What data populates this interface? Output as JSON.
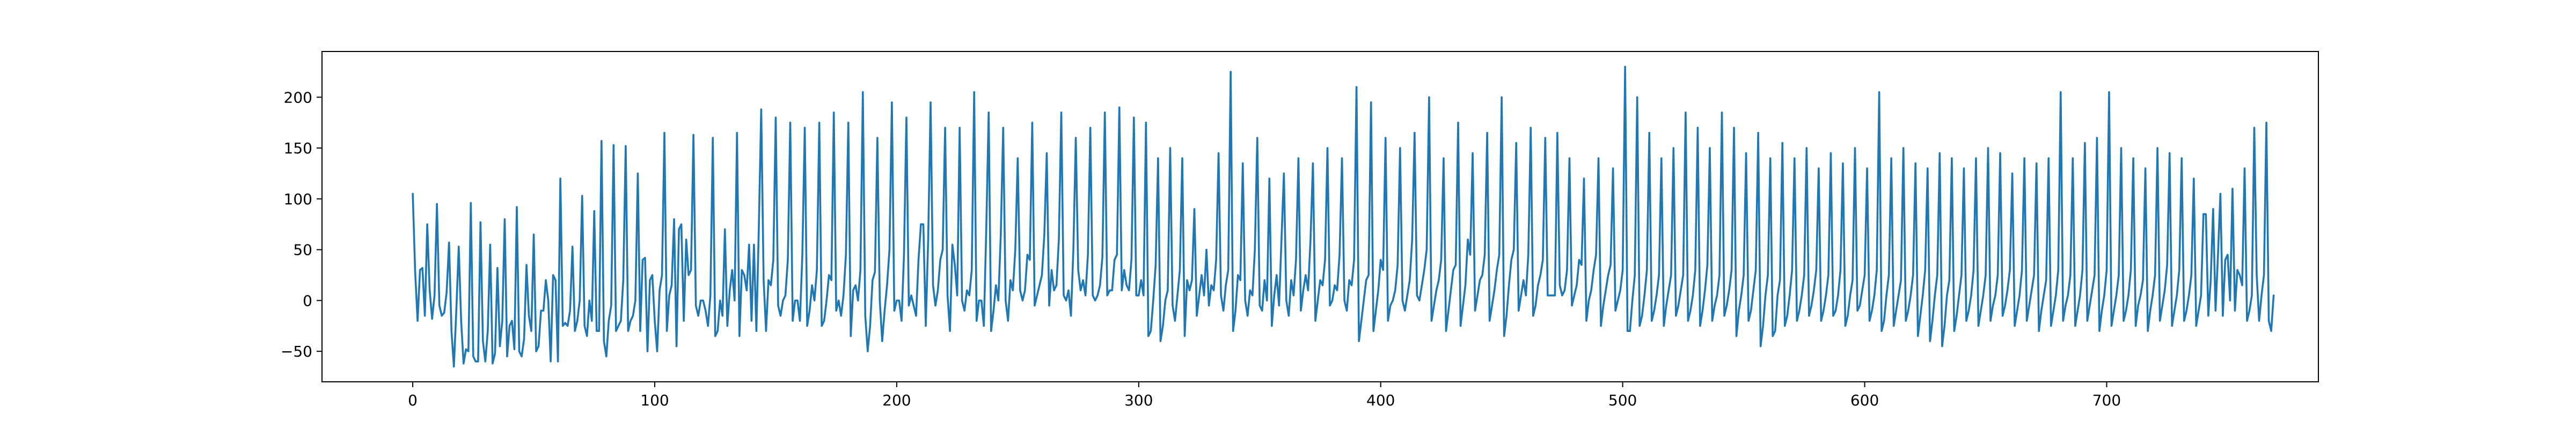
{
  "chart_data": {
    "type": "line",
    "title": "",
    "xlabel": "",
    "ylabel": "",
    "xlim": [
      -37.5,
      787.5
    ],
    "ylim": [
      -80,
      245
    ],
    "xticks": [
      0,
      100,
      200,
      300,
      400,
      500,
      600,
      700
    ],
    "yticks": [
      -50,
      0,
      50,
      100,
      150,
      200
    ],
    "xtick_labels": [
      "0",
      "100",
      "200",
      "300",
      "400",
      "500",
      "600",
      "700"
    ],
    "ytick_labels": [
      "−50",
      "0",
      "50",
      "100",
      "150",
      "200"
    ],
    "grid": false,
    "legend": "none",
    "series": [
      {
        "color": "#1f77b4",
        "x_start": 0,
        "x_step": 1,
        "values": [
          105,
          28,
          -20,
          30,
          32,
          -15,
          75,
          10,
          -18,
          5,
          95,
          -5,
          -15,
          -12,
          8,
          57,
          -30,
          -65,
          -10,
          53,
          -20,
          -62,
          -48,
          -50,
          96,
          -55,
          -60,
          -60,
          77,
          -40,
          -60,
          -30,
          55,
          -62,
          -52,
          32,
          -45,
          -20,
          80,
          -55,
          -25,
          -20,
          -48,
          92,
          -50,
          -55,
          -38,
          35,
          -15,
          -30,
          65,
          -50,
          -45,
          -10,
          -10,
          20,
          0,
          -60,
          25,
          20,
          -60,
          120,
          -25,
          -22,
          -25,
          -10,
          53,
          -30,
          -20,
          0,
          103,
          -25,
          -35,
          0,
          -20,
          88,
          -30,
          -30,
          157,
          -40,
          -55,
          -20,
          -5,
          153,
          -30,
          -25,
          -20,
          20,
          152,
          -30,
          -20,
          -15,
          0,
          125,
          -30,
          40,
          42,
          -50,
          20,
          25,
          -20,
          -50,
          10,
          25,
          165,
          -30,
          5,
          15,
          80,
          -45,
          70,
          75,
          -20,
          60,
          25,
          30,
          163,
          -5,
          -15,
          0,
          0,
          -10,
          -25,
          5,
          160,
          -35,
          -30,
          0,
          -15,
          70,
          -25,
          10,
          30,
          0,
          165,
          -35,
          30,
          25,
          10,
          55,
          -20,
          55,
          -30,
          70,
          188,
          20,
          -30,
          20,
          15,
          40,
          180,
          -5,
          -15,
          0,
          5,
          40,
          175,
          -20,
          0,
          0,
          -20,
          45,
          170,
          -25,
          -10,
          15,
          0,
          30,
          175,
          -25,
          -20,
          0,
          25,
          20,
          185,
          -10,
          0,
          -15,
          5,
          45,
          175,
          -35,
          10,
          15,
          0,
          30,
          205,
          -15,
          -50,
          -25,
          20,
          28,
          160,
          0,
          -40,
          -10,
          15,
          50,
          195,
          -10,
          0,
          0,
          -20,
          45,
          180,
          -5,
          5,
          -5,
          -15,
          40,
          75,
          75,
          -25,
          60,
          195,
          15,
          -5,
          10,
          40,
          50,
          170,
          5,
          -30,
          55,
          35,
          5,
          170,
          0,
          -10,
          10,
          5,
          30,
          205,
          -20,
          0,
          0,
          -25,
          70,
          185,
          -30,
          -10,
          15,
          0,
          65,
          170,
          0,
          -20,
          20,
          10,
          50,
          140,
          10,
          0,
          10,
          45,
          40,
          175,
          -5,
          5,
          15,
          25,
          65,
          145,
          -5,
          30,
          10,
          15,
          60,
          185,
          5,
          0,
          10,
          -15,
          50,
          160,
          30,
          10,
          20,
          5,
          45,
          170,
          5,
          0,
          5,
          15,
          43,
          185,
          5,
          10,
          10,
          40,
          45,
          190,
          10,
          30,
          15,
          10,
          40,
          180,
          5,
          5,
          20,
          5,
          175,
          -35,
          -30,
          0,
          35,
          140,
          -40,
          -25,
          0,
          10,
          150,
          -5,
          -20,
          5,
          30,
          140,
          -35,
          20,
          10,
          20,
          90,
          -15,
          5,
          25,
          5,
          50,
          -5,
          15,
          10,
          40,
          145,
          5,
          -10,
          15,
          30,
          225,
          -30,
          -10,
          25,
          20,
          135,
          0,
          -15,
          10,
          5,
          50,
          160,
          -5,
          -10,
          20,
          0,
          120,
          -25,
          5,
          25,
          -5,
          60,
          125,
          0,
          -15,
          20,
          5,
          40,
          140,
          -10,
          10,
          25,
          10,
          60,
          135,
          -20,
          0,
          20,
          15,
          40,
          150,
          -5,
          0,
          15,
          10,
          45,
          140,
          0,
          -10,
          20,
          15,
          40,
          210,
          -40,
          -20,
          0,
          20,
          25,
          195,
          -30,
          -10,
          10,
          40,
          30,
          160,
          -20,
          -5,
          0,
          10,
          35,
          150,
          0,
          -10,
          5,
          20,
          60,
          165,
          5,
          0,
          15,
          30,
          50,
          200,
          -20,
          -5,
          10,
          20,
          40,
          140,
          -30,
          -10,
          10,
          30,
          35,
          175,
          -25,
          -5,
          15,
          60,
          45,
          145,
          -10,
          5,
          20,
          25,
          45,
          165,
          -20,
          -5,
          10,
          30,
          45,
          200,
          -35,
          -15,
          15,
          40,
          50,
          155,
          -10,
          5,
          20,
          5,
          45,
          170,
          -15,
          -5,
          15,
          25,
          40,
          160,
          5,
          5,
          5,
          5,
          165,
          15,
          5,
          10,
          30,
          140,
          -5,
          5,
          15,
          40,
          35,
          120,
          -20,
          0,
          10,
          30,
          45,
          140,
          -25,
          -5,
          10,
          25,
          35,
          130,
          -10,
          0,
          10,
          30,
          230,
          -30,
          -30,
          0,
          25,
          200,
          -25,
          -15,
          5,
          30,
          165,
          -20,
          -10,
          5,
          25,
          140,
          -25,
          -5,
          10,
          25,
          150,
          -15,
          -5,
          10,
          25,
          185,
          -20,
          -10,
          5,
          30,
          170,
          -25,
          -10,
          10,
          35,
          150,
          -20,
          -5,
          5,
          25,
          185,
          -15,
          -5,
          10,
          30,
          170,
          -35,
          -10,
          5,
          25,
          145,
          -20,
          -10,
          10,
          30,
          165,
          -45,
          -25,
          5,
          25,
          140,
          -35,
          -30,
          5,
          20,
          155,
          -25,
          -15,
          5,
          30,
          140,
          -20,
          -10,
          5,
          25,
          150,
          -15,
          -5,
          10,
          30,
          130,
          -20,
          -10,
          5,
          25,
          145,
          -15,
          -10,
          5,
          30,
          135,
          -25,
          -15,
          5,
          20,
          150,
          -10,
          -5,
          10,
          25,
          130,
          -20,
          -10,
          5,
          30,
          205,
          -30,
          -20,
          5,
          25,
          140,
          -25,
          -10,
          5,
          20,
          150,
          -20,
          -10,
          5,
          25,
          135,
          -35,
          -15,
          5,
          30,
          130,
          -40,
          -20,
          5,
          25,
          145,
          -45,
          -25,
          5,
          20,
          140,
          -30,
          -15,
          5,
          25,
          130,
          -20,
          -10,
          5,
          30,
          140,
          -25,
          -10,
          5,
          25,
          150,
          -20,
          -5,
          5,
          25,
          145,
          -15,
          -5,
          10,
          30,
          125,
          -25,
          -10,
          5,
          30,
          140,
          -20,
          -5,
          10,
          25,
          135,
          -30,
          -10,
          5,
          20,
          140,
          -25,
          -10,
          5,
          30,
          205,
          -20,
          -5,
          5,
          25,
          140,
          -25,
          -10,
          5,
          30,
          155,
          -20,
          -5,
          10,
          25,
          160,
          -30,
          -10,
          5,
          30,
          205,
          -25,
          -10,
          5,
          25,
          150,
          -20,
          -10,
          5,
          30,
          140,
          -25,
          -5,
          5,
          20,
          130,
          -30,
          -10,
          5,
          25,
          150,
          -20,
          -5,
          10,
          35,
          145,
          -25,
          -10,
          5,
          30,
          140,
          -20,
          -10,
          5,
          25,
          120,
          -25,
          -10,
          5,
          85,
          85,
          -15,
          20,
          90,
          -10,
          45,
          105,
          -15,
          40,
          45,
          0,
          110,
          -10,
          30,
          25,
          15,
          130,
          -20,
          -10,
          5,
          170,
          25,
          -20,
          5,
          25,
          175,
          -20,
          -30,
          5
        ]
      }
    ]
  }
}
